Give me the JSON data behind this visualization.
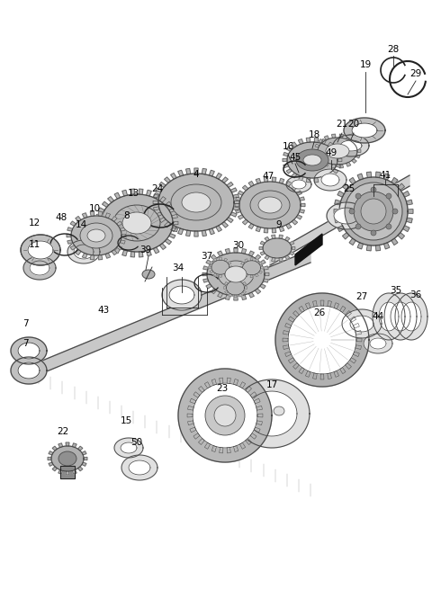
{
  "bg_color": "#ffffff",
  "lc": "#4a4a4a",
  "lc_dark": "#222222",
  "fc_gear": "#c8c8c8",
  "fc_light": "#e0e0e0",
  "fc_mid": "#b8b8b8",
  "fc_dark": "#909090",
  "fc_black": "#111111",
  "figw": 4.8,
  "figh": 6.55,
  "dpi": 100
}
